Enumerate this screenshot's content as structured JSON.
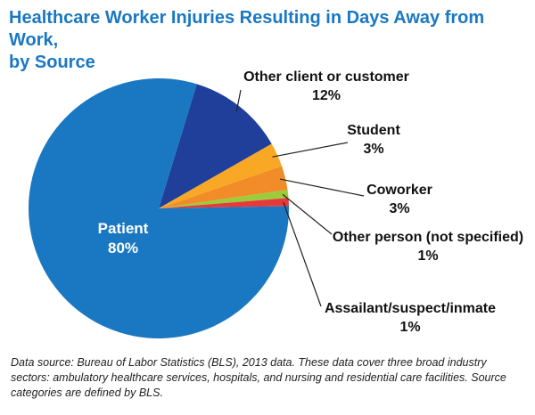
{
  "title": {
    "line1": "Healthcare Worker Injuries Resulting in Days Away from Work,",
    "line2": "by Source"
  },
  "chart_data": {
    "type": "pie",
    "title": "Healthcare Worker Injuries Resulting in Days Away from Work, by Source",
    "slices": [
      {
        "label": "Other client or customer",
        "value": 12,
        "value_label": "12%",
        "color": "#203f9a"
      },
      {
        "label": "Student",
        "value": 3,
        "value_label": "3%",
        "color": "#f9a825"
      },
      {
        "label": "Coworker",
        "value": 3,
        "value_label": "3%",
        "color": "#f28c28"
      },
      {
        "label": "Other person (not specified)",
        "value": 1,
        "value_label": "1%",
        "color": "#9ccc3c"
      },
      {
        "label": "Assailant/suspect/inmate",
        "value": 1,
        "value_label": "1%",
        "color": "#e5393b"
      },
      {
        "label": "Patient",
        "value": 80,
        "value_label": "80%",
        "color": "#1a78c2"
      }
    ],
    "start_angle_deg": 73,
    "direction": "clockwise",
    "leader_line_color": "#222222"
  },
  "source_note": "Data source: Bureau of Labor Statistics (BLS), 2013 data. These data cover three broad industry sectors: ambulatory healthcare services, hospitals, and nursing and residential care facilities. Source categories are defined by BLS."
}
